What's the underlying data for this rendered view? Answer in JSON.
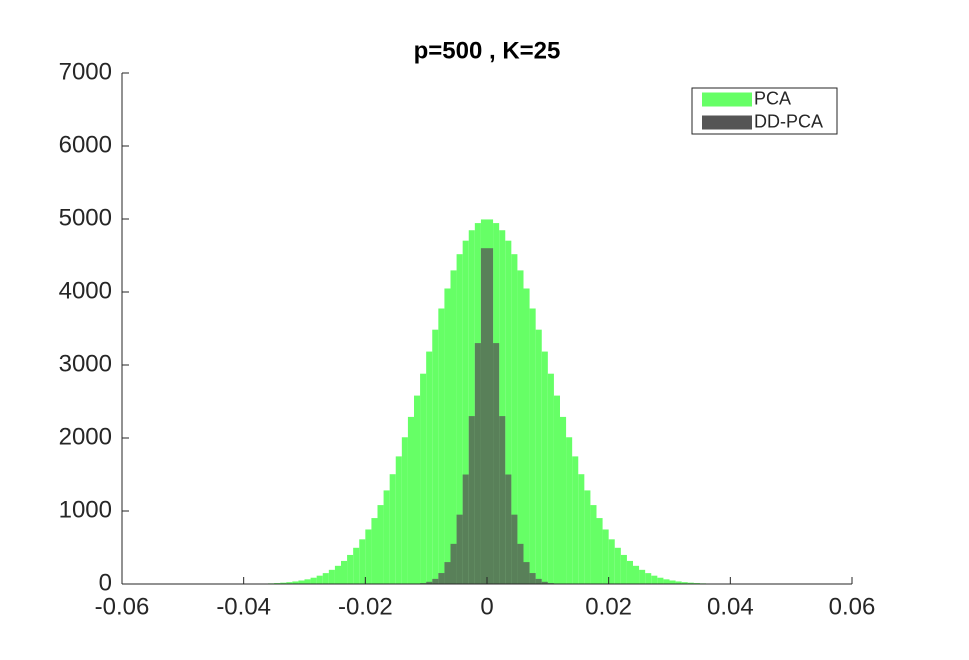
{
  "chart_data": {
    "type": "histogram",
    "title": "p=500 , K=25",
    "bins": [
      -0.05,
      -0.049,
      -0.048,
      -0.047,
      -0.046,
      -0.045,
      -0.044,
      -0.043,
      -0.042,
      -0.041,
      -0.04,
      -0.039,
      -0.038,
      -0.037,
      -0.036,
      -0.035,
      -0.034,
      -0.033,
      -0.032,
      -0.031,
      -0.03,
      -0.029,
      -0.028,
      -0.027,
      -0.026,
      -0.025,
      -0.024,
      -0.023,
      -0.022,
      -0.021,
      -0.02,
      -0.019,
      -0.018,
      -0.017,
      -0.016,
      -0.015,
      -0.014,
      -0.013,
      -0.012,
      -0.011,
      -0.01,
      -0.009,
      -0.008,
      -0.007,
      -0.006,
      -0.005,
      -0.004,
      -0.003,
      -0.002,
      -0.001,
      0,
      0.001,
      0.002,
      0.003,
      0.004,
      0.005,
      0.006,
      0.007,
      0.008,
      0.009,
      0.01,
      0.011,
      0.012,
      0.013,
      0.014,
      0.015,
      0.016,
      0.017,
      0.018,
      0.019,
      0.02,
      0.021,
      0.022,
      0.023,
      0.024,
      0.025,
      0.026,
      0.027,
      0.028,
      0.029,
      0.03,
      0.031,
      0.032,
      0.033,
      0.034,
      0.035,
      0.036,
      0.037,
      0.038,
      0.039,
      0.04,
      0.041,
      0.042,
      0.043,
      0.044,
      0.045,
      0.046,
      0.047,
      0.048,
      0.049,
      0.05
    ],
    "series": [
      {
        "name": "PCA",
        "color": "#66ff66",
        "values": [
          0,
          0,
          0,
          0,
          0,
          0,
          0,
          1,
          1,
          1,
          2,
          3,
          4,
          6,
          9,
          13,
          18,
          25,
          35,
          48,
          64,
          86,
          114,
          149,
          194,
          249,
          316,
          398,
          496,
          612,
          747,
          903,
          1081,
          1282,
          1504,
          1748,
          2010,
          2289,
          2581,
          2881,
          3184,
          3484,
          3774,
          4048,
          4296,
          4518,
          4703,
          4846,
          4944,
          4994,
          4994,
          4944,
          4846,
          4703,
          4518,
          4296,
          4048,
          3774,
          3484,
          3184,
          2881,
          2581,
          2289,
          2010,
          1748,
          1504,
          1282,
          1081,
          903,
          747,
          612,
          496,
          398,
          316,
          249,
          194,
          149,
          114,
          86,
          64,
          48,
          35,
          25,
          18,
          13,
          9,
          6,
          4,
          3,
          2,
          1,
          1,
          1,
          0,
          0,
          0,
          0,
          0,
          0,
          0
        ]
      },
      {
        "name": "DD-PCA",
        "color": "#555555",
        "values": [
          0,
          0,
          0,
          0,
          0,
          0,
          0,
          0,
          0,
          0,
          0,
          0,
          0,
          0,
          0,
          0,
          0,
          0,
          0,
          0,
          0,
          0,
          0,
          0,
          0,
          0,
          0,
          0,
          0,
          0,
          0,
          0,
          0,
          0,
          0,
          0,
          0,
          0,
          5,
          12,
          30,
          70,
          150,
          300,
          550,
          950,
          1500,
          2300,
          3300,
          4600,
          4600,
          3300,
          2300,
          1500,
          950,
          550,
          300,
          150,
          70,
          30,
          12,
          5,
          0,
          0,
          0,
          0,
          0,
          0,
          0,
          0,
          0,
          0,
          0,
          0,
          0,
          0,
          0,
          0,
          0,
          0,
          0,
          0,
          0,
          0,
          0,
          0,
          0,
          0,
          0,
          0,
          0,
          0,
          0,
          0,
          0,
          0,
          0,
          0,
          0,
          0
        ]
      }
    ],
    "xlim": [
      -0.06,
      0.06
    ],
    "xticks": [
      -0.06,
      -0.04,
      -0.02,
      0,
      0.02,
      0.04,
      0.06
    ],
    "ylim": [
      0,
      7000
    ],
    "yticks": [
      0,
      1000,
      2000,
      3000,
      4000,
      5000,
      6000,
      7000
    ],
    "legend": "upper right"
  }
}
